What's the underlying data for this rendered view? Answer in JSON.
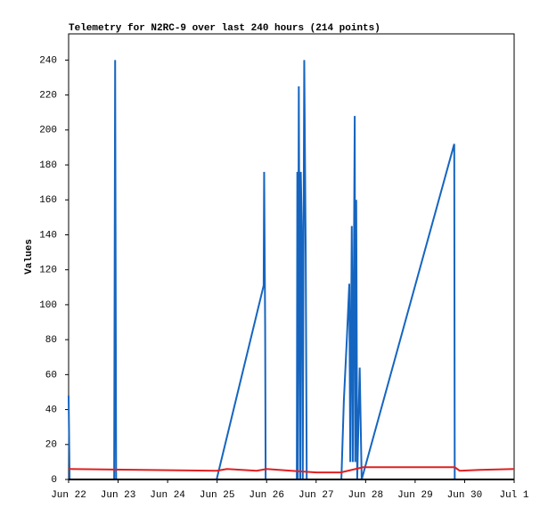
{
  "chart_data": {
    "type": "line",
    "title": "Telemetry for N2RC-9 over last 240 hours (214 points)",
    "y_label": "Values",
    "xlim": [
      0,
      9
    ],
    "xticks": [
      {
        "value": 0,
        "label": "Jun 22"
      },
      {
        "value": 1,
        "label": "Jun 23"
      },
      {
        "value": 2,
        "label": "Jun 24"
      },
      {
        "value": 3,
        "label": "Jun 25"
      },
      {
        "value": 4,
        "label": "Jun 26"
      },
      {
        "value": 5,
        "label": "Jun 27"
      },
      {
        "value": 6,
        "label": "Jun 28"
      },
      {
        "value": 7,
        "label": "Jun 29"
      },
      {
        "value": 8,
        "label": "Jun 30"
      },
      {
        "value": 9,
        "label": "Jul 1"
      }
    ],
    "ylim": [
      0,
      255
    ],
    "yticks": [
      0,
      20,
      40,
      60,
      80,
      100,
      120,
      140,
      160,
      180,
      200,
      220,
      240
    ],
    "grid": false,
    "series": [
      {
        "color": "#1565c0",
        "x": [
          0,
          0.02,
          0.92,
          0.93,
          0.94,
          0.96,
          2.99,
          3.94,
          3.95,
          3.97,
          3.98,
          4.61,
          4.62,
          4.63,
          4.65,
          4.68,
          4.69,
          4.71,
          4.73,
          4.74,
          4.76,
          4.79,
          4.81,
          5.51,
          5.56,
          5.62,
          5.67,
          5.69,
          5.72,
          5.73,
          5.74,
          5.78,
          5.79,
          5.81,
          5.83,
          5.88,
          5.92,
          7.79,
          7.8,
          9
        ],
        "values": [
          48,
          0,
          0,
          120,
          240,
          0,
          0,
          111,
          176,
          88,
          0,
          0,
          176,
          0,
          225,
          0,
          176,
          145,
          0,
          88,
          240,
          128,
          0,
          0,
          45,
          80,
          112,
          10,
          145,
          97,
          10,
          208,
          10,
          160,
          0,
          64,
          0,
          192,
          0,
          0
        ]
      },
      {
        "color": "#e02020",
        "x": [
          0,
          1.5,
          2.99,
          3.2,
          3.8,
          4.0,
          4.5,
          5.0,
          5.5,
          5.95,
          7.8,
          7.9,
          8.3,
          9
        ],
        "values": [
          6,
          5.5,
          5,
          6,
          5,
          6,
          5,
          4,
          4,
          7,
          7,
          5,
          5.5,
          6
        ]
      },
      {
        "color": "#000000",
        "x": [
          0,
          9
        ],
        "values": [
          0,
          0
        ]
      }
    ]
  }
}
